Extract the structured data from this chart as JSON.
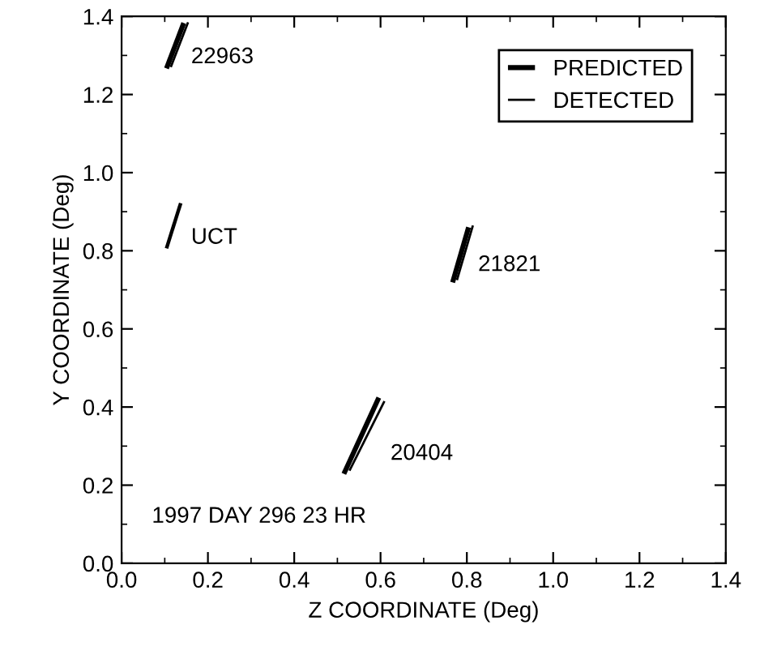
{
  "chart_data": {
    "type": "line",
    "xlabel": "Z COORDINATE (Deg)",
    "ylabel": "Y COORDINATE (Deg)",
    "xlim": [
      0,
      1.4
    ],
    "ylim": [
      0,
      1.4
    ],
    "xticks": [
      {
        "value": 0,
        "label": "0.0"
      },
      {
        "value": 0.2,
        "label": "0.2"
      },
      {
        "value": 0.4,
        "label": "0.4"
      },
      {
        "value": 0.6,
        "label": "0.6"
      },
      {
        "value": 0.8,
        "label": "0.8"
      },
      {
        "value": 1.0,
        "label": "1.0"
      },
      {
        "value": 1.2,
        "label": "1.2"
      },
      {
        "value": 1.4,
        "label": "1.4"
      }
    ],
    "yticks": [
      {
        "value": 0,
        "label": "0.0"
      },
      {
        "value": 0.2,
        "label": "0.2"
      },
      {
        "value": 0.4,
        "label": "0.4"
      },
      {
        "value": 0.6,
        "label": "0.6"
      },
      {
        "value": 0.8,
        "label": "0.8"
      },
      {
        "value": 1.0,
        "label": "1.0"
      },
      {
        "value": 1.2,
        "label": "1.2"
      },
      {
        "value": 1.4,
        "label": "1.4"
      }
    ],
    "grid": false,
    "legend": "top right",
    "marker": "none",
    "series": [
      {
        "name": "PREDICTED",
        "color": "#000000",
        "x": [
          0.104,
          0.144
        ],
        "values": [
          1.267,
          1.383
        ]
      },
      {
        "name": "DETECTED",
        "color": "#000000",
        "x": [
          0.114,
          0.154
        ],
        "values": [
          1.27,
          1.385
        ]
      },
      {
        "color": "#000000",
        "x": [
          0.104,
          0.137
        ],
        "values": [
          0.806,
          0.922
        ]
      },
      {
        "color": "#000000",
        "x": [
          0.515,
          0.596
        ],
        "values": [
          0.229,
          0.424
        ]
      },
      {
        "color": "#000000",
        "x": [
          0.528,
          0.609
        ],
        "values": [
          0.237,
          0.415
        ]
      },
      {
        "color": "#000000",
        "x": [
          0.767,
          0.804
        ],
        "values": [
          0.719,
          0.86
        ]
      },
      {
        "color": "#000000",
        "x": [
          0.777,
          0.814
        ],
        "values": [
          0.725,
          0.865
        ]
      }
    ],
    "annotations": [
      "22963",
      "UCT",
      "21821",
      "20404",
      "1997 DAY 296 23 HR"
    ]
  }
}
